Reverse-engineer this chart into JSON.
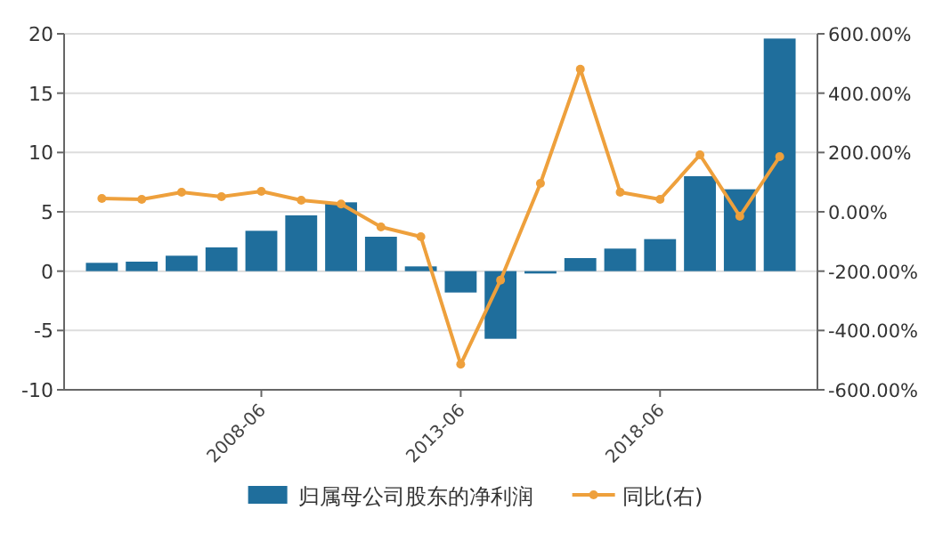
{
  "chart_data": {
    "type": "bar",
    "categories": [
      null,
      null,
      null,
      null,
      "2008-06",
      null,
      null,
      null,
      null,
      "2013-06",
      null,
      null,
      null,
      null,
      "2018-06",
      null,
      null,
      null
    ],
    "series": [
      {
        "name": "归属母公司股东的净利润",
        "color": "#1f6e9c",
        "values": [
          0.7,
          0.8,
          1.3,
          2.0,
          3.4,
          4.7,
          5.8,
          2.9,
          0.4,
          -1.8,
          -5.7,
          -0.2,
          1.1,
          1.9,
          2.7,
          8.0,
          6.9,
          19.6
        ]
      },
      {
        "name": "同比(右)",
        "type": "line",
        "axis": "y2",
        "color": "#eea03c",
        "values": [
          45,
          42,
          66,
          51,
          69,
          39,
          26,
          -51,
          -84,
          -514,
          -230,
          96,
          481,
          66,
          42,
          192,
          -15,
          186
        ]
      }
    ],
    "ylim": [
      -10,
      20
    ],
    "yticks": [
      -10,
      -5,
      0,
      5,
      10,
      15,
      20
    ],
    "y2lim": [
      -600,
      600
    ],
    "y2ticks": [
      {
        "value": -600,
        "label": "-600.00%"
      },
      {
        "value": -400,
        "label": "-400.00%"
      },
      {
        "value": -200,
        "label": "-200.00%"
      },
      {
        "value": 0,
        "label": "0.00%"
      },
      {
        "value": 200,
        "label": "200.00%"
      },
      {
        "value": 400,
        "label": "400.00%"
      },
      {
        "value": 600,
        "label": "600.00%"
      }
    ],
    "grid": "y",
    "legend": "bottom",
    "marker": "circle"
  }
}
